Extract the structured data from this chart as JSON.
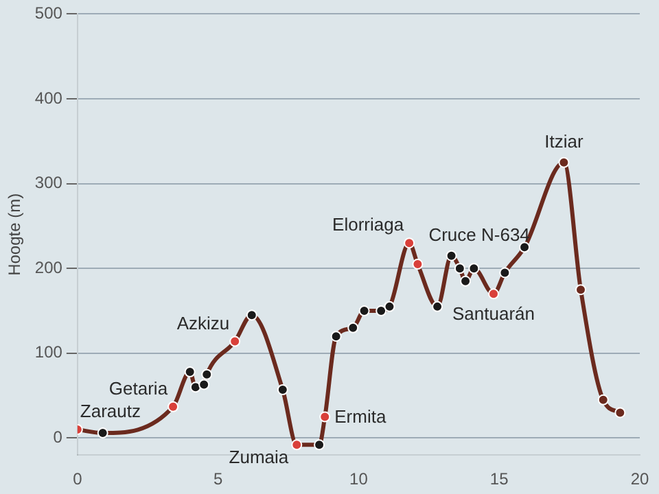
{
  "chart_data": {
    "type": "line",
    "ylabel": "Hoogte (m)",
    "x": [
      0,
      0.9,
      3.4,
      4,
      4.2,
      4.5,
      4.6,
      5.6,
      6.2,
      7.3,
      7.8,
      8.6,
      8.8,
      9.2,
      9.8,
      10.2,
      10.8,
      11.1,
      11.8,
      12.1,
      12.8,
      13.3,
      13.6,
      13.8,
      14.1,
      14.8,
      15.2,
      15.9,
      17.3,
      17.9,
      18.7,
      19.3
    ],
    "series": [
      {
        "color": "#6b2a1e",
        "values": [
          10,
          6,
          37,
          78,
          60,
          63,
          75,
          114,
          145,
          57,
          -8,
          -8,
          25,
          120,
          130,
          150,
          150,
          155,
          230,
          205,
          155,
          215,
          200,
          185,
          200,
          170,
          195,
          225,
          325,
          175,
          45,
          30
        ],
        "colors": [
          "#d9403a",
          "#1a1a1a",
          "#d9403a",
          "#1a1a1a",
          "#1a1a1a",
          "#1a1a1a",
          "#1a1a1a",
          "#d9403a",
          "#1a1a1a",
          "#1a1a1a",
          "#d9403a",
          "#1a1a1a",
          "#d9403a",
          "#1a1a1a",
          "#1a1a1a",
          "#1a1a1a",
          "#1a1a1a",
          "#1a1a1a",
          "#d9403a",
          "#d9403a",
          "#1a1a1a",
          "#1a1a1a",
          "#1a1a1a",
          "#1a1a1a",
          "#1a1a1a",
          "#d9403a",
          "#1a1a1a",
          "#1a1a1a",
          "#6b2a1e",
          "#6b2a1e",
          "#6b2a1e",
          "#6b2a1e"
        ]
      }
    ],
    "xlim": [
      0,
      20
    ],
    "xticks": [
      0,
      5,
      10,
      15,
      20
    ],
    "ylim": [
      -20,
      500
    ],
    "yticks": [
      0,
      100,
      200,
      300,
      400,
      500
    ],
    "grid": "y",
    "legend": false,
    "marker": "circle",
    "line_style": "solid",
    "annotations": [
      {
        "text": "Zarautz",
        "x": 0,
        "y": 10
      },
      {
        "text": "Getaria",
        "x": 3.4,
        "y": 37
      },
      {
        "text": "Azkizu",
        "x": 5.6,
        "y": 114
      },
      {
        "text": "Zumaia",
        "x": 7.8,
        "y": -8
      },
      {
        "text": "Ermita",
        "x": 8.8,
        "y": 25
      },
      {
        "text": "Elorriaga",
        "x": 11.8,
        "y": 230
      },
      {
        "text": "Cruce N-634",
        "x": 12.1,
        "y": 205
      },
      {
        "text": "Santuarán",
        "x": 14.8,
        "y": 170
      },
      {
        "text": "Itziar",
        "x": 17.3,
        "y": 325
      }
    ]
  }
}
